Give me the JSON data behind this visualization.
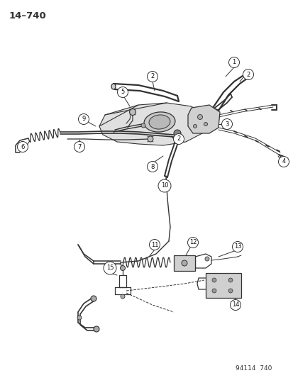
{
  "page_id": "14–740",
  "footer_text": "94114  740",
  "bg_color": "#ffffff",
  "line_color": "#333333",
  "callout_bg": "#ffffff",
  "callout_border": "#333333",
  "callout_text_color": "#111111",
  "figsize": [
    4.14,
    5.33
  ],
  "dpi": 100,
  "lw_main": 1.1,
  "lw_thin": 0.7,
  "lw_thick": 1.6,
  "callout_r": 7.5,
  "callout_fs": 6.0
}
